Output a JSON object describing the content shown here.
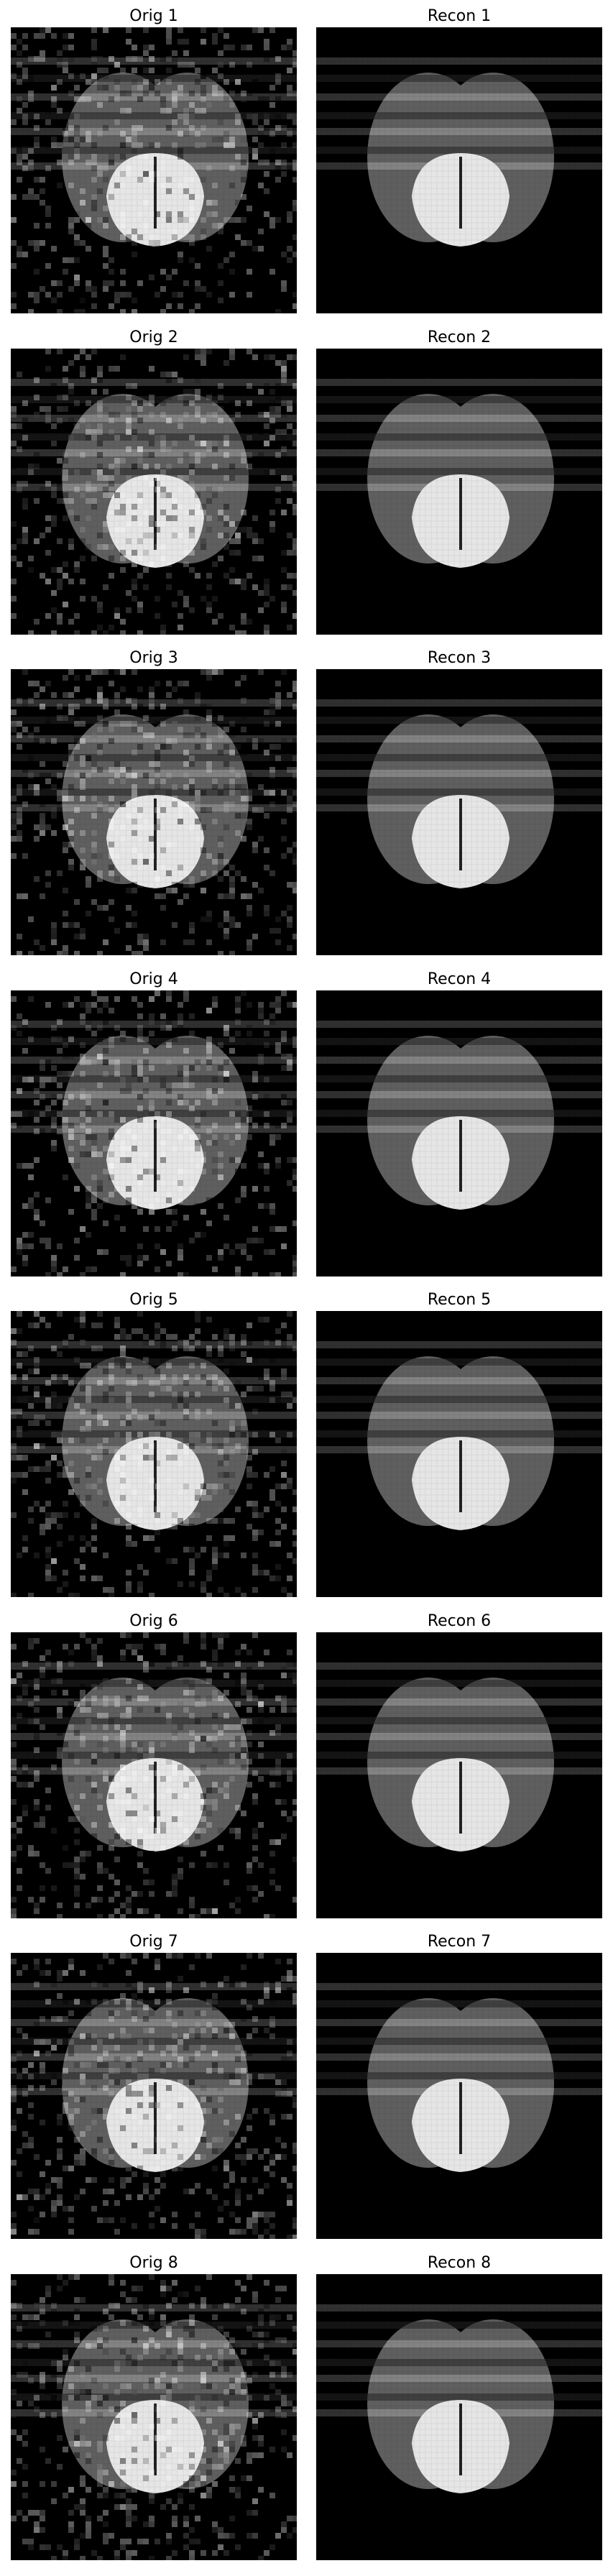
{
  "figure": {
    "panels": [
      {
        "row": 0,
        "col": 0,
        "title": "Orig 1",
        "kind": "orig"
      },
      {
        "row": 0,
        "col": 1,
        "title": "Recon 1",
        "kind": "recon"
      },
      {
        "row": 1,
        "col": 0,
        "title": "Orig 2",
        "kind": "orig"
      },
      {
        "row": 1,
        "col": 1,
        "title": "Recon 2",
        "kind": "recon"
      },
      {
        "row": 2,
        "col": 0,
        "title": "Orig 3",
        "kind": "orig"
      },
      {
        "row": 2,
        "col": 1,
        "title": "Recon 3",
        "kind": "recon"
      },
      {
        "row": 3,
        "col": 0,
        "title": "Orig 4",
        "kind": "orig"
      },
      {
        "row": 3,
        "col": 1,
        "title": "Recon 4",
        "kind": "recon"
      },
      {
        "row": 4,
        "col": 0,
        "title": "Orig 5",
        "kind": "orig"
      },
      {
        "row": 4,
        "col": 1,
        "title": "Recon 5",
        "kind": "recon"
      },
      {
        "row": 5,
        "col": 0,
        "title": "Orig 6",
        "kind": "orig"
      },
      {
        "row": 5,
        "col": 1,
        "title": "Recon 6",
        "kind": "recon"
      },
      {
        "row": 6,
        "col": 0,
        "title": "Orig 7",
        "kind": "orig"
      },
      {
        "row": 6,
        "col": 1,
        "title": "Recon 7",
        "kind": "recon"
      },
      {
        "row": 7,
        "col": 0,
        "title": "Orig 8",
        "kind": "orig"
      },
      {
        "row": 7,
        "col": 1,
        "title": "Recon 8",
        "kind": "recon"
      }
    ]
  },
  "colors": {
    "background": "#000000",
    "lobe": "#5f5f5f",
    "core": "#e6e6e6",
    "stripe_light": "#8a8a8a",
    "stripe_dark": "#3a3a3a",
    "noise": "#ffffff"
  }
}
